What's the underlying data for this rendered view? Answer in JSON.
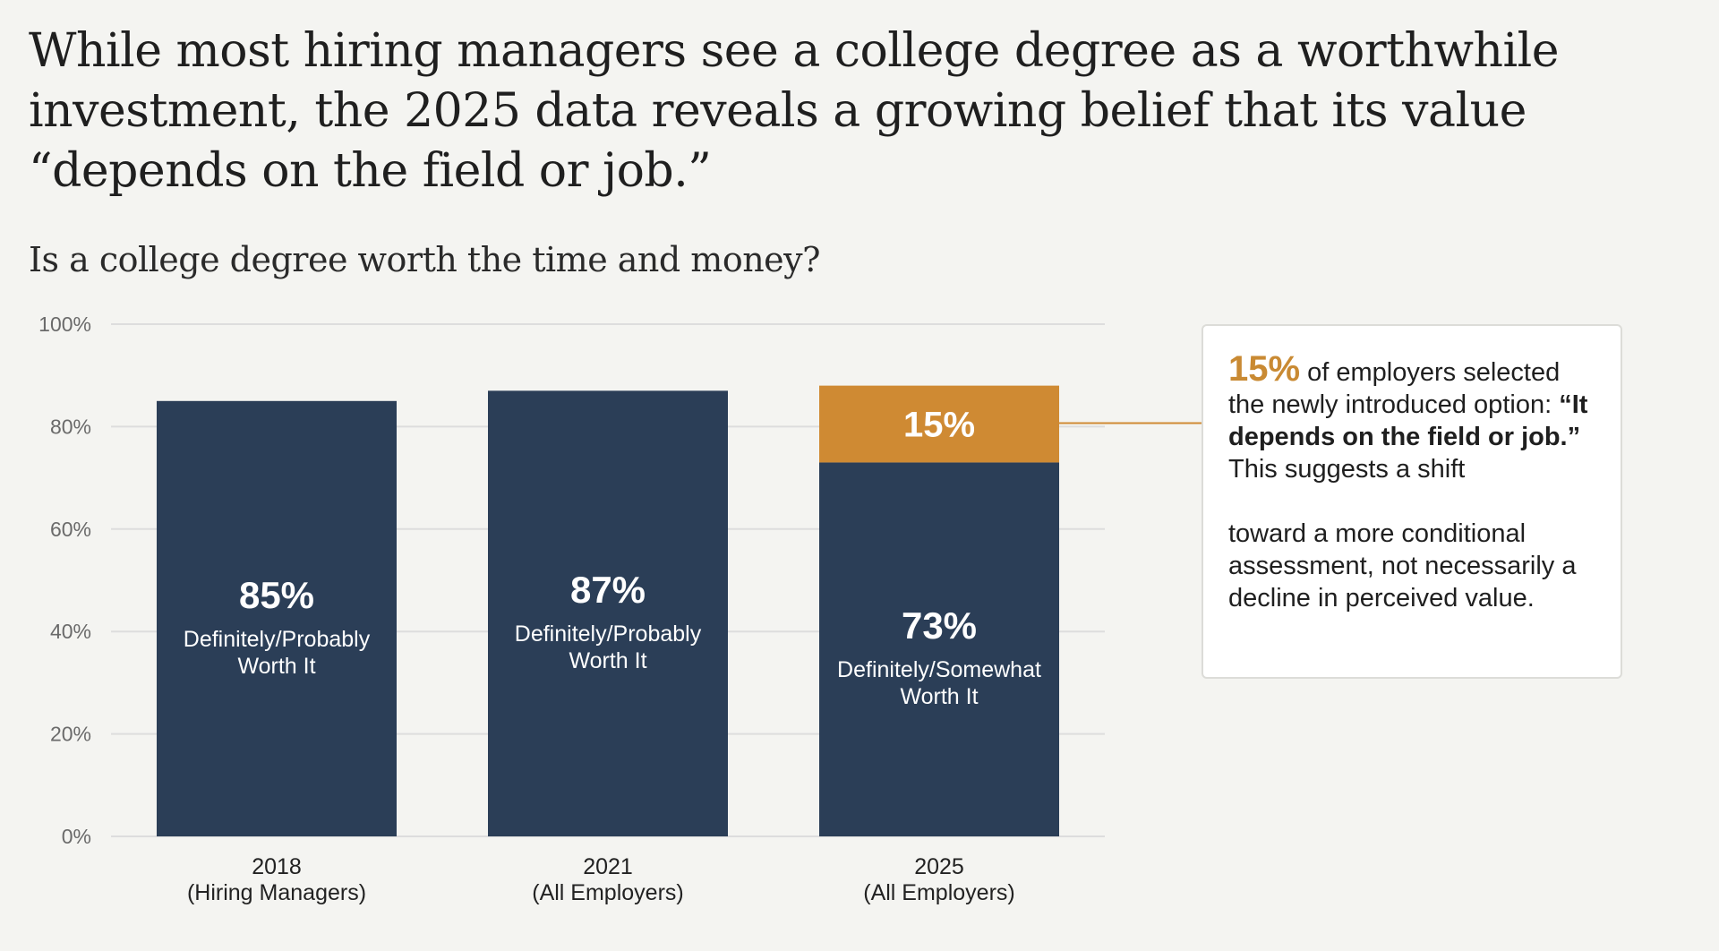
{
  "headline": "While most hiring managers see a college degree as a worthwhile investment, the 2025 data reveals a growing belief that its value “depends on the field or job.”",
  "subtitle": "Is a college degree worth the time and money?",
  "colors": {
    "primary": "#2b3e57",
    "accent": "#cf8a33",
    "grid": "#dddddd",
    "background": "#f4f4f1"
  },
  "chart_data": {
    "type": "bar",
    "stacked": true,
    "ylim": [
      0,
      100
    ],
    "yticks": [
      "0%",
      "20%",
      "40%",
      "60%",
      "80%",
      "100%"
    ],
    "ytick_values": [
      0,
      20,
      40,
      60,
      80,
      100
    ],
    "grid": true,
    "categories": [
      {
        "year": "2018",
        "group": "(Hiring Managers)"
      },
      {
        "year": "2021",
        "group": "(All Employers)"
      },
      {
        "year": "2025",
        "group": "(All Employers)"
      }
    ],
    "series": [
      {
        "values": [
          85,
          87,
          73
        ],
        "labels": [
          {
            "value": "85%",
            "line1": "Definitely/Probably",
            "line2": "Worth It"
          },
          {
            "value": "87%",
            "line1": "Definitely/Probably",
            "line2": "Worth It"
          },
          {
            "value": "73%",
            "line1": "Definitely/Somewhat",
            "line2": "Worth It"
          }
        ]
      },
      {
        "values": [
          0,
          0,
          15
        ],
        "labels": [
          null,
          null,
          {
            "value": "15%"
          }
        ]
      }
    ]
  },
  "callout": {
    "pct": "15%",
    "text1": " of employers selected the newly introduced option: ",
    "bold": "“It depends on the field or job.”",
    "text2": " This suggests a shift",
    "text3": "toward a more conditional assessment, not necessarily a decline in perceived value."
  }
}
